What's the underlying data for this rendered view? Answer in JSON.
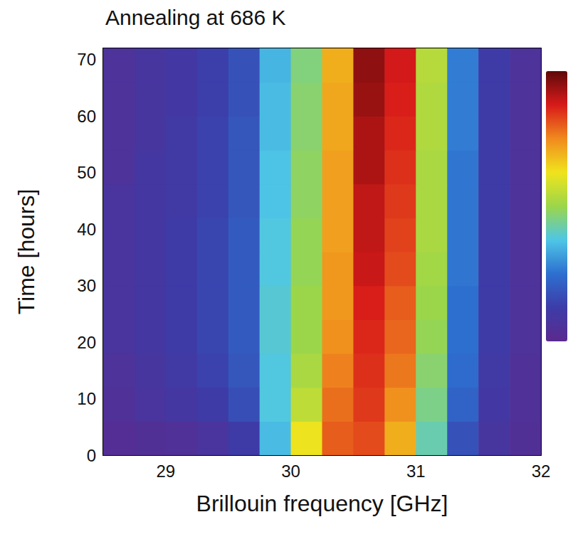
{
  "chart_data": {
    "type": "heatmap",
    "title": "Annealing at 686 K",
    "x_label": "Brillouin frequency [GHz]",
    "y_label": "Time [hours]",
    "x_edges": [
      28.5,
      28.75,
      29,
      29.25,
      29.5,
      29.75,
      30,
      30.25,
      30.5,
      30.75,
      31,
      31.25,
      31.5,
      31.75,
      32
    ],
    "y_edges": [
      0,
      6,
      12,
      18,
      24,
      30,
      36,
      42,
      48,
      54,
      60,
      66,
      72
    ],
    "values": [
      [
        0.03,
        0.04,
        0.05,
        0.07,
        0.12,
        0.36,
        0.62,
        0.8,
        0.82,
        0.7,
        0.42,
        0.18,
        0.08,
        0.04
      ],
      [
        0.05,
        0.07,
        0.09,
        0.12,
        0.17,
        0.38,
        0.55,
        0.78,
        0.84,
        0.74,
        0.45,
        0.22,
        0.1,
        0.05
      ],
      [
        0.06,
        0.08,
        0.11,
        0.14,
        0.19,
        0.38,
        0.52,
        0.76,
        0.85,
        0.77,
        0.47,
        0.24,
        0.11,
        0.05
      ],
      [
        0.07,
        0.09,
        0.12,
        0.15,
        0.2,
        0.39,
        0.5,
        0.74,
        0.86,
        0.79,
        0.49,
        0.25,
        0.12,
        0.06
      ],
      [
        0.07,
        0.09,
        0.12,
        0.15,
        0.2,
        0.39,
        0.5,
        0.73,
        0.87,
        0.8,
        0.5,
        0.25,
        0.12,
        0.06
      ],
      [
        0.07,
        0.09,
        0.12,
        0.15,
        0.2,
        0.38,
        0.49,
        0.73,
        0.89,
        0.82,
        0.51,
        0.26,
        0.12,
        0.06
      ],
      [
        0.07,
        0.09,
        0.12,
        0.15,
        0.2,
        0.38,
        0.49,
        0.72,
        0.9,
        0.83,
        0.52,
        0.26,
        0.12,
        0.06
      ],
      [
        0.07,
        0.09,
        0.11,
        0.14,
        0.19,
        0.37,
        0.48,
        0.72,
        0.9,
        0.84,
        0.52,
        0.26,
        0.12,
        0.06
      ],
      [
        0.06,
        0.09,
        0.11,
        0.14,
        0.19,
        0.37,
        0.48,
        0.72,
        0.92,
        0.85,
        0.52,
        0.26,
        0.12,
        0.06
      ],
      [
        0.06,
        0.08,
        0.11,
        0.14,
        0.19,
        0.36,
        0.47,
        0.71,
        0.92,
        0.86,
        0.53,
        0.27,
        0.12,
        0.06
      ],
      [
        0.06,
        0.08,
        0.1,
        0.13,
        0.18,
        0.36,
        0.47,
        0.71,
        0.94,
        0.87,
        0.53,
        0.27,
        0.12,
        0.06
      ],
      [
        0.06,
        0.08,
        0.1,
        0.13,
        0.18,
        0.35,
        0.46,
        0.7,
        0.95,
        0.88,
        0.54,
        0.27,
        0.12,
        0.06
      ]
    ],
    "xlim": [
      28.5,
      32
    ],
    "xticks": [
      29,
      30,
      31,
      32
    ],
    "ylim": [
      0,
      72
    ],
    "yticks": [
      0,
      10,
      20,
      30,
      40,
      50,
      60,
      70
    ],
    "colorbar": {
      "range": [
        0,
        1
      ]
    }
  }
}
